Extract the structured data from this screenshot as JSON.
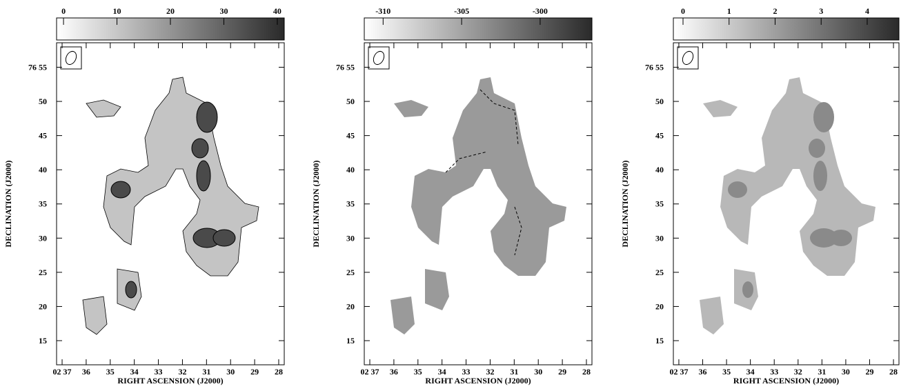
{
  "chart_data": [
    {
      "type": "map",
      "xlabel": "RIGHT ASCENSION (J2000)",
      "ylabel": "DECLINATION (J2000)",
      "xlim": [
        37.23,
        27.77
      ],
      "xticks": [
        {
          "value": 37,
          "label": "02 37"
        },
        36,
        35,
        34,
        33,
        32,
        31,
        30,
        29,
        28
      ],
      "ylim": [
        11.47,
        58.58
      ],
      "yticks": [
        15,
        20,
        25,
        30,
        35,
        40,
        45,
        50,
        {
          "value": 55,
          "label": "76 55"
        }
      ],
      "clim": [
        -1.3,
        41.3
      ],
      "cticks": [
        0,
        10,
        20,
        30,
        40
      ],
      "cmap": [
        "#ffffff",
        "#2a2a2a"
      ]
    },
    {
      "type": "map",
      "xlabel": "RIGHT ASCENSION (J2000)",
      "ylabel": "DECLINATION (J2000)",
      "xlim": [
        37.23,
        27.77
      ],
      "xticks": [
        {
          "value": 37,
          "label": "02 37"
        },
        36,
        35,
        34,
        33,
        32,
        31,
        30,
        29,
        28
      ],
      "ylim": [
        11.47,
        58.58
      ],
      "yticks": [
        15,
        20,
        25,
        30,
        35,
        40,
        45,
        50,
        {
          "value": 55,
          "label": "76 55"
        }
      ],
      "clim": [
        -311.2,
        -296.7
      ],
      "cticks": [
        -310,
        -305,
        -300
      ],
      "cmap": [
        "#ffffff",
        "#2a2a2a"
      ]
    },
    {
      "type": "map",
      "xlabel": "RIGHT ASCENSION (J2000)",
      "ylabel": "DECLINATION (J2000)",
      "xlim": [
        37.23,
        27.77
      ],
      "xticks": [
        {
          "value": 37,
          "label": "02 37"
        },
        36,
        35,
        34,
        33,
        32,
        31,
        30,
        29,
        28
      ],
      "ylim": [
        11.47,
        58.58
      ],
      "yticks": [
        15,
        20,
        25,
        30,
        35,
        40,
        45,
        50,
        {
          "value": 55,
          "label": "76 55"
        }
      ],
      "clim": [
        -0.21,
        4.69
      ],
      "cticks": [
        0,
        1,
        2,
        3,
        4
      ],
      "cmap": [
        "#ffffff",
        "#2a2a2a"
      ]
    }
  ]
}
